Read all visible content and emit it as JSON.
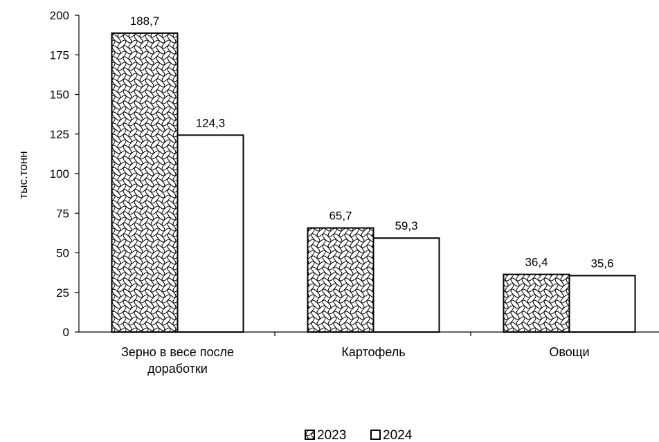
{
  "chart_data": {
    "type": "bar",
    "title": "",
    "xlabel": "",
    "ylabel": "тыс.тонн",
    "ylim": [
      0,
      200
    ],
    "yticks": [
      "0",
      "25",
      "50",
      "75",
      "100",
      "125",
      "150",
      "175",
      "200"
    ],
    "yticks_values": [
      0,
      25,
      50,
      75,
      100,
      125,
      150,
      175,
      200
    ],
    "categories": [
      [
        "Зерно в весе после",
        "доработки"
      ],
      [
        "Картофель"
      ],
      [
        "Овощи"
      ]
    ],
    "series": [
      {
        "name": "2023",
        "pattern": "crosshatch",
        "values": [
          188.7,
          65.7,
          36.4
        ],
        "labels": [
          "188,7",
          "65,7",
          "36,4"
        ]
      },
      {
        "name": "2024",
        "pattern": "none",
        "values": [
          124.3,
          59.3,
          35.6
        ],
        "labels": [
          "124,3",
          "59,3",
          "35,6"
        ]
      }
    ],
    "grid": false,
    "legend_position": "bottom",
    "colors": {
      "bar_fill": "#ffffff",
      "stroke": "#000000"
    }
  }
}
